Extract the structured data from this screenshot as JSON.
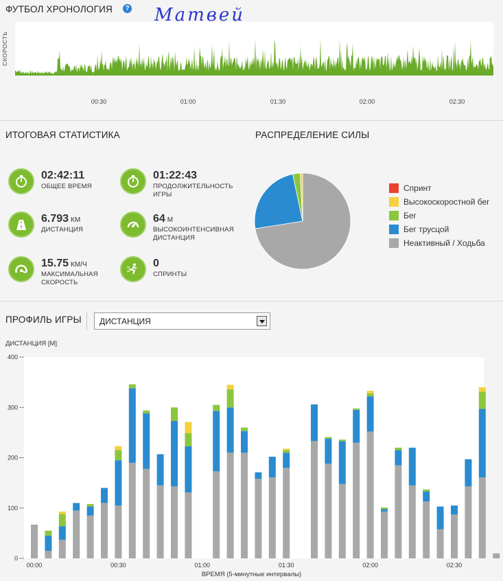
{
  "timeline": {
    "title": "ФУТБОЛ ХРОНОЛОГИЯ",
    "help_icon": "?",
    "handwritten_name": "Матвей",
    "y_label": "СКОРОСТЬ",
    "ticks": [
      "00:30",
      "01:00",
      "01:30",
      "02:00",
      "02:30"
    ],
    "color": "#6aab2a"
  },
  "summary": {
    "title": "ИТОГОВАЯ СТАТИСТИКА",
    "stats": [
      {
        "icon": "stopwatch-icon",
        "value": "02:42:11",
        "unit": "",
        "label": "ОБЩЕЕ ВРЕМЯ"
      },
      {
        "icon": "stopwatch-icon",
        "value": "01:22:43",
        "unit": "",
        "label": "ПРОДОЛЖИТЕЛЬНОСТЬ ИГРЫ"
      },
      {
        "icon": "road-icon",
        "value": "6.793",
        "unit": "КМ",
        "label": "ДИСТАНЦИЯ"
      },
      {
        "icon": "gauge-icon",
        "value": "64",
        "unit": "М",
        "label": "ВЫСОКОИНТЕНСИВНАЯ ДИСТАНЦИЯ"
      },
      {
        "icon": "speedometer-icon",
        "value": "15.75",
        "unit": "КМ/Ч",
        "label": "МАКСИМАЛЬНАЯ СКОРОСТЬ"
      },
      {
        "icon": "sprinter-icon",
        "value": "0",
        "unit": "",
        "label": "СПРИНТЫ"
      }
    ],
    "icon_color": "#7dbb2f"
  },
  "distribution": {
    "title": "РАСПРЕДЕЛЕНИЕ СИЛЫ",
    "legend": [
      {
        "label": "Спринт",
        "color": "#e8432e"
      },
      {
        "label": "Высокоскоростной бег",
        "color": "#f4d03f"
      },
      {
        "label": "Бег",
        "color": "#8cc63f"
      },
      {
        "label": "Бег трусцой",
        "color": "#2a8bd0"
      },
      {
        "label": "Неактивный / Ходьба",
        "color": "#a8a8a8"
      }
    ]
  },
  "profile": {
    "title": "ПРОФИЛЬ ИГРЫ",
    "select_value": "ДИСТАНЦИЯ",
    "y_title": "ДИСТАНЦИЯ [М]",
    "x_title": "ВРЕМЯ (5-минутные интервалы)"
  },
  "chart_data": [
    {
      "type": "pie",
      "title": "РАСПРЕДЕЛЕНИЕ СИЛЫ",
      "categories": [
        "Спринт",
        "Высокоскоростной бег",
        "Бег",
        "Бег трусцой",
        "Неактивный / Ходьба"
      ],
      "values": [
        0,
        0.8,
        2.5,
        24.2,
        72.5
      ],
      "colors": [
        "#e8432e",
        "#f4d03f",
        "#8cc63f",
        "#2a8bd0",
        "#a8a8a8"
      ]
    },
    {
      "type": "bar",
      "stacked": true,
      "ylabel": "ДИСТАНЦИЯ [М]",
      "xlabel": "ВРЕМЯ (5-минутные интервалы)",
      "ylim": [
        0,
        400
      ],
      "yticks": [
        0,
        100,
        200,
        300,
        400
      ],
      "xticks": [
        "00:00",
        "00:30",
        "01:00",
        "01:30",
        "02:00",
        "02:30"
      ],
      "xtick_every": 6,
      "grid": false,
      "series": [
        {
          "name": "Неактивный / Ходьба",
          "color": "#a8a8a8",
          "values": [
            67,
            15,
            37,
            95,
            85,
            110,
            105,
            190,
            178,
            145,
            143,
            131,
            0,
            173,
            210,
            210,
            158,
            161,
            180,
            0,
            233,
            188,
            148,
            230,
            252,
            93,
            185,
            145,
            113,
            58,
            87,
            143,
            161,
            10
          ]
        },
        {
          "name": "Бег трусцой",
          "color": "#2a8bd0",
          "values": [
            0,
            30,
            27,
            15,
            18,
            30,
            90,
            148,
            110,
            62,
            130,
            92,
            0,
            120,
            90,
            43,
            13,
            41,
            30,
            0,
            73,
            50,
            85,
            65,
            70,
            5,
            30,
            75,
            20,
            45,
            18,
            54,
            136,
            0
          ]
        },
        {
          "name": "Бег",
          "color": "#8cc63f",
          "values": [
            0,
            10,
            24,
            0,
            5,
            0,
            20,
            8,
            6,
            0,
            27,
            26,
            0,
            12,
            36,
            7,
            0,
            0,
            5,
            0,
            0,
            3,
            3,
            3,
            6,
            3,
            5,
            0,
            4,
            0,
            0,
            0,
            34,
            0
          ]
        },
        {
          "name": "Высокоскоростной бег",
          "color": "#f4d03f",
          "values": [
            0,
            0,
            5,
            0,
            0,
            0,
            8,
            0,
            0,
            0,
            0,
            22,
            0,
            0,
            9,
            0,
            0,
            0,
            3,
            0,
            0,
            0,
            0,
            0,
            5,
            0,
            0,
            0,
            0,
            0,
            0,
            0,
            9,
            0
          ]
        },
        {
          "name": "Спринт",
          "color": "#e8432e",
          "values": [
            0,
            0,
            0,
            0,
            0,
            0,
            0,
            0,
            0,
            0,
            0,
            0,
            0,
            0,
            0,
            0,
            0,
            0,
            0,
            0,
            0,
            0,
            0,
            0,
            0,
            0,
            0,
            0,
            0,
            0,
            0,
            0,
            0,
            0
          ]
        }
      ]
    }
  ]
}
